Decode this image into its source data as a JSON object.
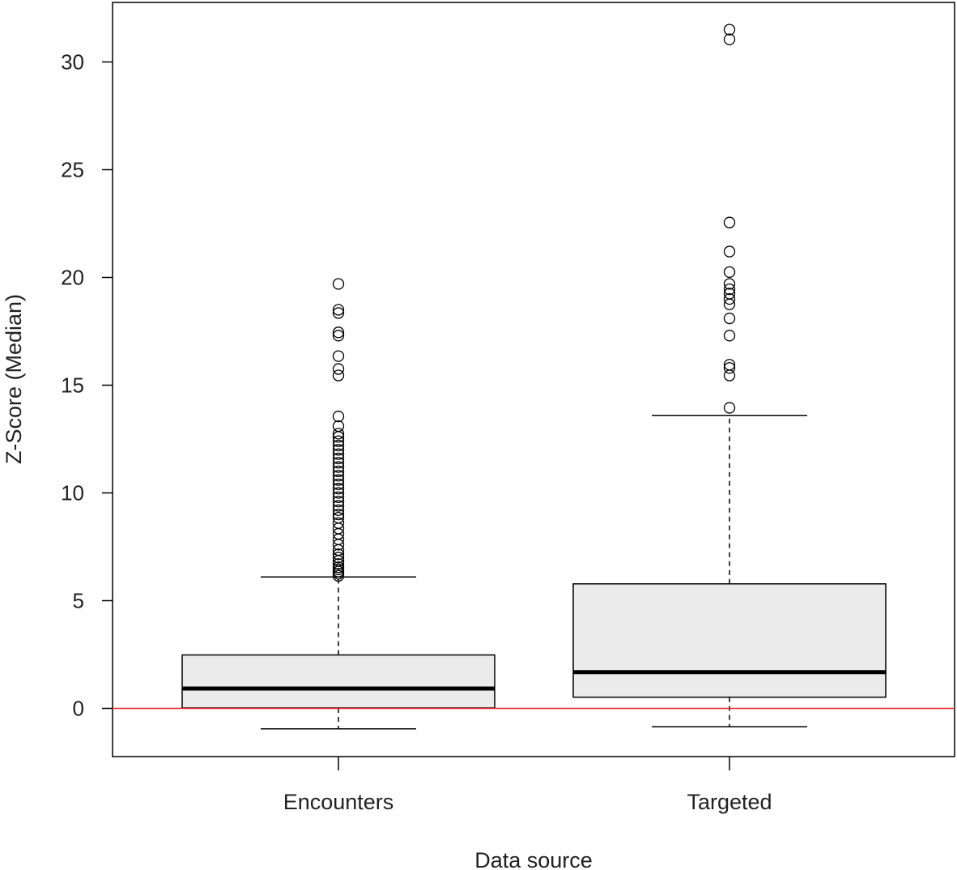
{
  "chart_data": {
    "type": "boxplot",
    "title": "",
    "xlabel": "Data source",
    "ylabel": "Z-Score (Median)",
    "ylim": [
      -2.25,
      32.8
    ],
    "yticks": [
      0,
      5,
      10,
      15,
      20,
      25,
      30
    ],
    "reference_line": {
      "y": 0,
      "color": "#e8262a"
    },
    "box_fill": "#ebebeb",
    "categories": [
      "Encounters",
      "Targeted"
    ],
    "boxes": [
      {
        "name": "Encounters",
        "whisker_low": -0.95,
        "q1": 0.02,
        "median": 0.92,
        "q3": 2.48,
        "whisker_high": 6.1,
        "outliers": [
          6.15,
          6.25,
          6.35,
          6.45,
          6.55,
          6.7,
          6.85,
          7.0,
          7.15,
          7.35,
          7.6,
          7.85,
          8.1,
          8.35,
          8.6,
          8.85,
          9.0,
          9.2,
          9.4,
          9.6,
          9.8,
          10.0,
          10.2,
          10.4,
          10.6,
          10.8,
          11.0,
          11.2,
          11.4,
          11.6,
          11.8,
          12.0,
          12.2,
          12.4,
          12.6,
          12.75,
          13.1,
          13.55,
          15.45,
          15.75,
          16.35,
          17.3,
          17.45,
          18.35,
          18.5,
          19.7
        ]
      },
      {
        "name": "Targeted",
        "whisker_low": -0.85,
        "q1": 0.52,
        "median": 1.68,
        "q3": 5.78,
        "whisker_high": 13.6,
        "outliers": [
          13.95,
          15.45,
          15.8,
          15.95,
          17.3,
          18.1,
          18.75,
          19.0,
          19.25,
          19.45,
          19.7,
          20.25,
          21.2,
          22.55,
          31.05,
          31.5
        ]
      }
    ]
  }
}
